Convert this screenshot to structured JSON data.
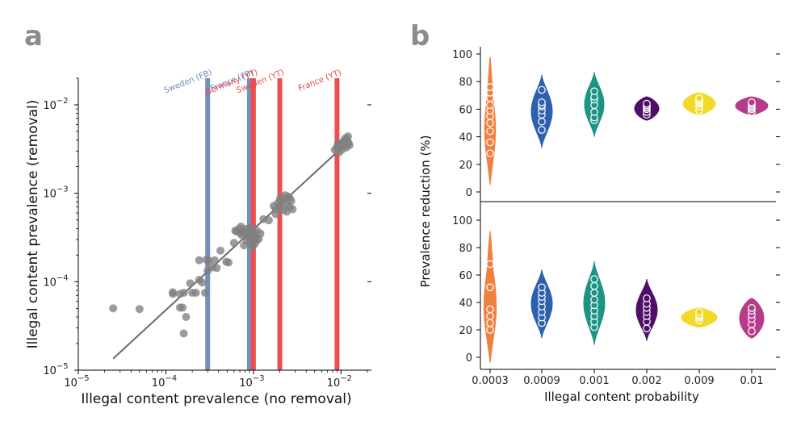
{
  "colors": {
    "fb": "#6f88b8",
    "yt": "#ee4545",
    "scatter": "#808080",
    "fit": "#6a6a6a",
    "violins": [
      "#ee8040",
      "#2d60ae",
      "#1b9485",
      "#4f0f66",
      "#f2d828",
      "#b63c8a"
    ]
  },
  "chart_data": [
    {
      "type": "scatter",
      "panel": "a",
      "xlabel": "Illegal content prevalence (no removal)",
      "ylabel": "Illegal content prevalence (removal)",
      "xscale": "log",
      "yscale": "log",
      "xlim": [
        1e-05,
        0.02
      ],
      "ylim": [
        1e-05,
        0.02
      ],
      "xtick_values": [
        1e-05,
        0.0001,
        0.001,
        0.01
      ],
      "xticks": [
        {
          "base": "10",
          "exp": "−5"
        },
        {
          "base": "10",
          "exp": "−4"
        },
        {
          "base": "10",
          "exp": "−3"
        },
        {
          "base": "10",
          "exp": "−2"
        }
      ],
      "ytick_values": [
        1e-05,
        0.0001,
        0.001,
        0.01
      ],
      "yticks": [
        {
          "base": "10",
          "exp": "−5"
        },
        {
          "base": "10",
          "exp": "−4"
        },
        {
          "base": "10",
          "exp": "−3"
        },
        {
          "base": "10",
          "exp": "−2"
        }
      ],
      "vlines": [
        {
          "label": "Sweden (FB)",
          "x": 0.0003,
          "platform": "FB"
        },
        {
          "label": "France (FB)",
          "x": 0.0009,
          "platform": "FB"
        },
        {
          "label": "Germany (YT)",
          "x": 0.001,
          "platform": "YT"
        },
        {
          "label": "Sweden (YT)",
          "x": 0.002,
          "platform": "YT"
        },
        {
          "label": "France (YT)",
          "x": 0.009,
          "platform": "YT"
        }
      ],
      "fit_line": {
        "x": [
          2.5e-05,
          0.012
        ],
        "y": [
          1.35e-05,
          0.0038
        ]
      },
      "points": [
        [
          2.5e-05,
          5e-05
        ],
        [
          5e-05,
          4.9e-05
        ],
        [
          0.00012,
          7.6e-05
        ],
        [
          0.00012,
          7.3e-05
        ],
        [
          0.000145,
          7.3e-05
        ],
        [
          0.000145,
          5.1e-05
        ],
        [
          0.000155,
          5.1e-05
        ],
        [
          0.00016,
          7.5e-05
        ],
        [
          0.00016,
          2.6e-05
        ],
        [
          0.00017,
          4e-05
        ],
        [
          0.00019,
          9.6e-05
        ],
        [
          0.0002,
          7.5e-05
        ],
        [
          0.00022,
          7.5e-05
        ],
        [
          0.00024,
          0.000105
        ],
        [
          0.00024,
          0.000175
        ],
        [
          0.00026,
          9.8e-05
        ],
        [
          0.00028,
          7.5e-05
        ],
        [
          0.00029,
          0.000177
        ],
        [
          0.0003,
          0.000133
        ],
        [
          0.00031,
          0.000173
        ],
        [
          0.00034,
          0.000145
        ],
        [
          0.00036,
          0.000175
        ],
        [
          0.00038,
          0.000143
        ],
        [
          0.00042,
          0.000225
        ],
        [
          0.00049,
          0.000168
        ],
        [
          0.00052,
          0.000165
        ],
        [
          0.0006,
          0.000275
        ],
        [
          0.00062,
          0.000378
        ],
        [
          0.00064,
          0.000372
        ],
        [
          0.00068,
          0.000395
        ],
        [
          0.0007,
          0.000355
        ],
        [
          0.00072,
          0.00042
        ],
        [
          0.00074,
          0.000335
        ],
        [
          0.00076,
          0.000358
        ],
        [
          0.00078,
          0.000258
        ],
        [
          0.0008,
          0.00037
        ],
        [
          0.00082,
          0.000395
        ],
        [
          0.00084,
          0.00029
        ],
        [
          0.00086,
          0.00032
        ],
        [
          0.00088,
          0.000355
        ],
        [
          0.0009,
          0.00039
        ],
        [
          0.00092,
          0.000355
        ],
        [
          0.00094,
          0.000412
        ],
        [
          0.00096,
          0.00027
        ],
        [
          0.00098,
          0.00025
        ],
        [
          0.001,
          0.000358
        ],
        [
          0.00102,
          0.00033
        ],
        [
          0.00104,
          0.00027
        ],
        [
          0.00106,
          0.00031
        ],
        [
          0.00108,
          0.00029
        ],
        [
          0.0011,
          0.000375
        ],
        [
          0.00115,
          0.000305
        ],
        [
          0.0012,
          0.00035
        ],
        [
          0.0013,
          0.00051
        ],
        [
          0.0015,
          0.000495
        ],
        [
          0.0017,
          0.00072
        ],
        [
          0.0018,
          0.00066
        ],
        [
          0.0018,
          0.00058
        ],
        [
          0.0019,
          0.00077
        ],
        [
          0.002,
          0.00086
        ],
        [
          0.002,
          0.0007
        ],
        [
          0.0021,
          0.00089
        ],
        [
          0.0022,
          0.00065
        ],
        [
          0.0022,
          0.00082
        ],
        [
          0.0023,
          0.00095
        ],
        [
          0.0024,
          0.00075
        ],
        [
          0.0024,
          0.00062
        ],
        [
          0.0025,
          0.00092
        ],
        [
          0.0026,
          0.00088
        ],
        [
          0.0026,
          0.0007
        ],
        [
          0.0027,
          0.00082
        ],
        [
          0.0028,
          0.00066
        ],
        [
          0.0085,
          0.0031
        ],
        [
          0.009,
          0.0033
        ],
        [
          0.0092,
          0.0036
        ],
        [
          0.0095,
          0.0029
        ],
        [
          0.0098,
          0.0035
        ],
        [
          0.01,
          0.0037
        ],
        [
          0.0102,
          0.0031
        ],
        [
          0.0105,
          0.0034
        ],
        [
          0.0108,
          0.0039
        ],
        [
          0.011,
          0.0036
        ],
        [
          0.0112,
          0.0042
        ],
        [
          0.0115,
          0.0033
        ],
        [
          0.0118,
          0.004
        ],
        [
          0.012,
          0.0044
        ],
        [
          0.0122,
          0.0037
        ],
        [
          0.0125,
          0.0035
        ]
      ]
    },
    {
      "type": "violin",
      "panel": "b",
      "xlabel": "Illegal content probability",
      "ylabel": "Prevalence reduction (%)",
      "categories": [
        "0.0003",
        "0.0009",
        "0.001",
        "0.002",
        "0.009",
        "0.01"
      ],
      "yticks": [
        0,
        20,
        40,
        60,
        80,
        100
      ],
      "ylim": [
        -8,
        108
      ],
      "subplots": [
        {
          "name": "top",
          "violins": [
            {
              "range": [
                5,
                98
              ],
              "halfwidth": 7,
              "shape": "long",
              "points": [
                28,
                36,
                44,
                50,
                55,
                59,
                63,
                68,
                72,
                76
              ]
            },
            {
              "range": [
                32,
                85
              ],
              "halfwidth": 13,
              "shape": "bulge",
              "points": [
                45,
                51,
                56,
                59,
                62,
                63,
                65,
                74
              ]
            },
            {
              "range": [
                40,
                87
              ],
              "halfwidth": 12,
              "shape": "bulge",
              "points": [
                52,
                54,
                58,
                63,
                67,
                69,
                73
              ]
            },
            {
              "range": [
                52,
                69
              ],
              "halfwidth": 15,
              "shape": "tight",
              "points": [
                56,
                58,
                60,
                61,
                62,
                63,
                64
              ]
            },
            {
              "range": [
                56,
                72
              ],
              "halfwidth": 20,
              "shape": "tight",
              "points": [
                59,
                62,
                64,
                65,
                66,
                67,
                68
              ]
            },
            {
              "range": [
                56,
                69
              ],
              "halfwidth": 20,
              "shape": "tight",
              "points": [
                58,
                60,
                61,
                62,
                63,
                64,
                65
              ]
            }
          ]
        },
        {
          "name": "bottom",
          "violins": [
            {
              "range": [
                -4,
                92
              ],
              "halfwidth": 8,
              "shape": "long",
              "points": [
                20,
                25,
                30,
                35,
                51,
                68
              ]
            },
            {
              "range": [
                14,
                64
              ],
              "halfwidth": 13,
              "shape": "bulge",
              "points": [
                25,
                29,
                33,
                37,
                41,
                44,
                47,
                51
              ]
            },
            {
              "range": [
                9,
                70
              ],
              "halfwidth": 13,
              "shape": "bulge",
              "points": [
                22,
                26,
                30,
                34,
                38,
                42,
                47,
                52,
                57
              ]
            },
            {
              "range": [
                12,
                57
              ],
              "halfwidth": 13,
              "shape": "bulge",
              "points": [
                21,
                26,
                30,
                33,
                36,
                39,
                43
              ]
            },
            {
              "range": [
                22,
                36
              ],
              "halfwidth": 22,
              "shape": "tight",
              "points": [
                27,
                29,
                30,
                31,
                33
              ]
            },
            {
              "range": [
                14,
                43
              ],
              "halfwidth": 15,
              "shape": "tight",
              "points": [
                19,
                24,
                28,
                31,
                34,
                36
              ]
            }
          ]
        }
      ]
    }
  ],
  "panels": {
    "a_label": "a",
    "b_label": "b"
  }
}
